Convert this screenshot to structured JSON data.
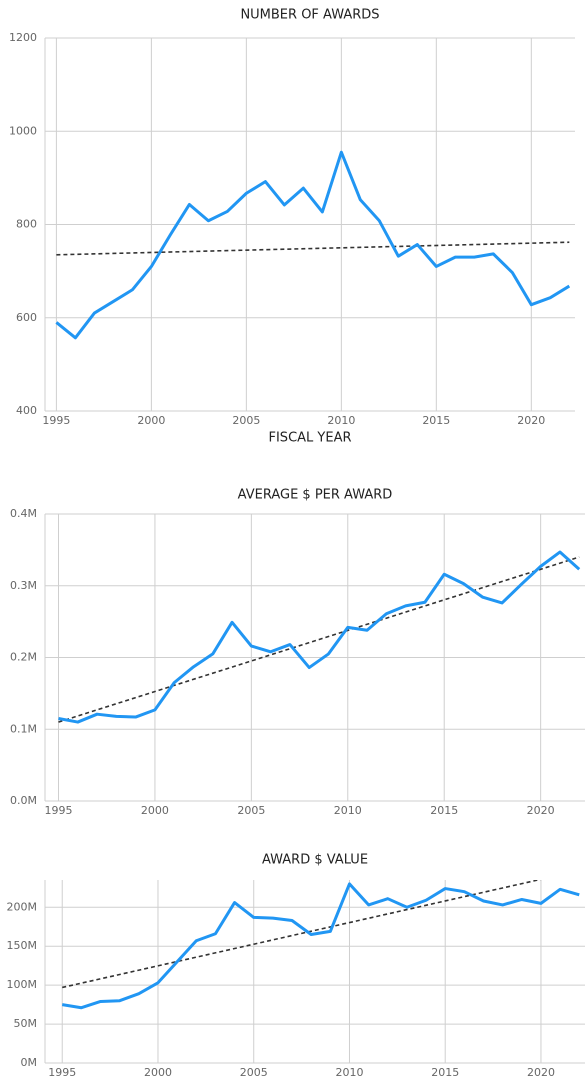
{
  "chart_data": [
    {
      "type": "line",
      "title": "NUMBER OF AWARDS",
      "x_label": "FISCAL YEAR",
      "x": [
        1995,
        1996,
        1997,
        1998,
        1999,
        2000,
        2001,
        2002,
        2003,
        2004,
        2005,
        2006,
        2007,
        2008,
        2009,
        2010,
        2011,
        2012,
        2013,
        2014,
        2015,
        2016,
        2017,
        2018,
        2019,
        2020,
        2021,
        2022
      ],
      "series": [
        {
          "color": "#2196f3",
          "values": [
            590,
            557,
            610,
            635,
            660,
            710,
            778,
            843,
            808,
            828,
            867,
            892,
            842,
            878,
            827,
            955,
            853,
            808,
            732,
            757,
            710,
            730,
            730,
            737,
            697,
            628,
            643,
            668
          ]
        }
      ],
      "trend": {
        "color": "#333333",
        "x": [
          1995,
          2022
        ],
        "values": [
          735,
          762
        ]
      },
      "xlim": [
        1994.4,
        2022.3
      ],
      "xticks": [
        1995,
        2000,
        2005,
        2010,
        2015,
        2020
      ],
      "ylim": [
        400,
        1200
      ],
      "yticks": [
        400,
        600,
        800,
        1000,
        1200
      ],
      "grid": true
    },
    {
      "type": "line",
      "title": "AVERAGE $ PER AWARD",
      "x": [
        1995,
        1996,
        1997,
        1998,
        1999,
        2000,
        2001,
        2002,
        2003,
        2004,
        2005,
        2006,
        2007,
        2008,
        2009,
        2010,
        2011,
        2012,
        2013,
        2014,
        2015,
        2016,
        2017,
        2018,
        2019,
        2020,
        2021,
        2022
      ],
      "series": [
        {
          "color": "#2196f3",
          "values": [
            0.115,
            0.11,
            0.121,
            0.118,
            0.117,
            0.127,
            0.165,
            0.187,
            0.205,
            0.249,
            0.216,
            0.208,
            0.218,
            0.186,
            0.205,
            0.242,
            0.238,
            0.261,
            0.272,
            0.277,
            0.316,
            0.303,
            0.284,
            0.276,
            0.302,
            0.327,
            0.347,
            0.323
          ]
        }
      ],
      "trend": {
        "color": "#333333",
        "x": [
          1995,
          2022
        ],
        "values": [
          0.11,
          0.34
        ]
      },
      "xlim": [
        1994.3,
        2022.3
      ],
      "xticks": [
        1995,
        2000,
        2005,
        2010,
        2015,
        2020
      ],
      "ylim": [
        0,
        0.4
      ],
      "yticks": [
        {
          "value": 0,
          "label": "0.0M"
        },
        {
          "value": 0.1,
          "label": "0.1M"
        },
        {
          "value": 0.2,
          "label": "0.2M"
        },
        {
          "value": 0.3,
          "label": "0.3M"
        },
        {
          "value": 0.4,
          "label": "0.4M"
        }
      ],
      "grid": true
    },
    {
      "type": "line",
      "title": "AWARD $ VALUE",
      "x": [
        1995,
        1996,
        1997,
        1998,
        1999,
        2000,
        2001,
        2002,
        2003,
        2004,
        2005,
        2006,
        2007,
        2008,
        2009,
        2010,
        2011,
        2012,
        2013,
        2014,
        2015,
        2016,
        2017,
        2018,
        2019,
        2020,
        2021,
        2022
      ],
      "series": [
        {
          "color": "#2196f3",
          "values": [
            75,
            71,
            79,
            80,
            89,
            103,
            130,
            157,
            166,
            206,
            187,
            186,
            183,
            165,
            169,
            230,
            203,
            211,
            200,
            209,
            224,
            220,
            208,
            203,
            210,
            205,
            223,
            216
          ]
        }
      ],
      "trend": {
        "color": "#333333",
        "x": [
          1995,
          2022
        ],
        "values": [
          97,
          247
        ]
      },
      "xlim": [
        1994.1,
        2022.3
      ],
      "xticks": [
        1995,
        2000,
        2005,
        2010,
        2015,
        2020
      ],
      "ylim": [
        0,
        235
      ],
      "yticks": [
        {
          "value": 0,
          "label": "0M"
        },
        {
          "value": 50,
          "label": "50M"
        },
        {
          "value": 100,
          "label": "100M"
        },
        {
          "value": 150,
          "label": "150M"
        },
        {
          "value": 200,
          "label": "200M"
        }
      ],
      "grid": true
    }
  ]
}
